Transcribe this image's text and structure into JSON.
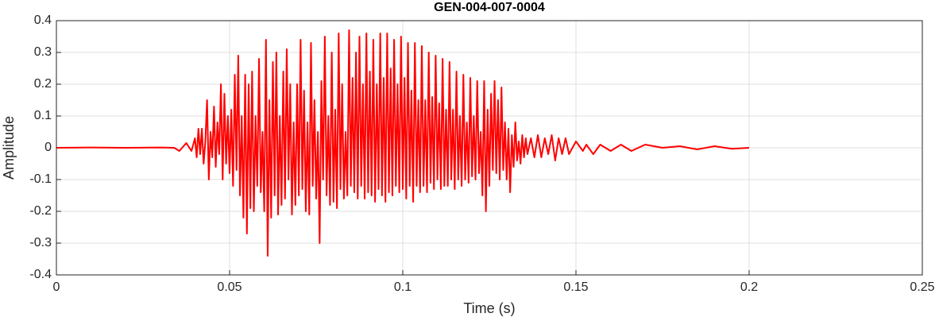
{
  "chart_data": {
    "type": "line",
    "title": "GEN-004-007-0004",
    "xlabel": "Time (s)",
    "ylabel": "Amplitude",
    "color": "#ff0000",
    "grid": true,
    "xlim": [
      0,
      0.25
    ],
    "xticks": [
      0,
      0.05,
      0.1,
      0.15,
      0.2,
      0.25
    ],
    "ylim": [
      -0.4,
      0.4
    ],
    "yticks": [
      -0.4,
      -0.3,
      -0.2,
      -0.1,
      0,
      0.1,
      0.2,
      0.3,
      0.4
    ],
    "x": [
      0,
      0.01,
      0.02,
      0.03,
      0.034,
      0.0355,
      0.0375,
      0.039,
      0.04,
      0.0405,
      0.041,
      0.0415,
      0.042,
      0.0425,
      0.043,
      0.0435,
      0.044,
      0.0445,
      0.045,
      0.0455,
      0.046,
      0.0465,
      0.047,
      0.0475,
      0.048,
      0.0485,
      0.049,
      0.0495,
      0.05,
      0.0505,
      0.051,
      0.0515,
      0.052,
      0.0525,
      0.053,
      0.0535,
      0.054,
      0.0545,
      0.055,
      0.0555,
      0.056,
      0.0565,
      0.057,
      0.0575,
      0.058,
      0.0585,
      0.059,
      0.0595,
      0.06,
      0.0605,
      0.061,
      0.0615,
      0.062,
      0.0625,
      0.063,
      0.0635,
      0.064,
      0.0645,
      0.065,
      0.0655,
      0.066,
      0.0665,
      0.067,
      0.0675,
      0.068,
      0.0685,
      0.069,
      0.0695,
      0.07,
      0.0705,
      0.071,
      0.0715,
      0.072,
      0.0725,
      0.073,
      0.0735,
      0.074,
      0.0745,
      0.075,
      0.0755,
      0.076,
      0.0765,
      0.077,
      0.0775,
      0.078,
      0.0785,
      0.079,
      0.0795,
      0.08,
      0.0805,
      0.081,
      0.0815,
      0.082,
      0.0825,
      0.083,
      0.0835,
      0.084,
      0.0845,
      0.085,
      0.0855,
      0.086,
      0.0865,
      0.087,
      0.0875,
      0.088,
      0.0885,
      0.089,
      0.0895,
      0.09,
      0.0905,
      0.091,
      0.0915,
      0.092,
      0.0925,
      0.093,
      0.0935,
      0.094,
      0.0945,
      0.095,
      0.0955,
      0.096,
      0.0965,
      0.097,
      0.0975,
      0.098,
      0.0985,
      0.099,
      0.0995,
      0.1,
      0.1005,
      0.101,
      0.1015,
      0.102,
      0.1025,
      0.103,
      0.1035,
      0.104,
      0.1045,
      0.105,
      0.1055,
      0.106,
      0.1065,
      0.107,
      0.1075,
      0.108,
      0.1085,
      0.109,
      0.1095,
      0.11,
      0.1105,
      0.111,
      0.1115,
      0.112,
      0.1125,
      0.113,
      0.1135,
      0.114,
      0.1145,
      0.115,
      0.1155,
      0.116,
      0.1165,
      0.117,
      0.1175,
      0.118,
      0.1185,
      0.119,
      0.1195,
      0.12,
      0.1205,
      0.121,
      0.1215,
      0.122,
      0.1225,
      0.123,
      0.1235,
      0.124,
      0.1245,
      0.125,
      0.1255,
      0.126,
      0.1265,
      0.127,
      0.1275,
      0.128,
      0.1285,
      0.129,
      0.1295,
      0.13,
      0.1305,
      0.131,
      0.1315,
      0.132,
      0.1325,
      0.133,
      0.1335,
      0.134,
      0.1345,
      0.135,
      0.1355,
      0.136,
      0.137,
      0.138,
      0.139,
      0.14,
      0.141,
      0.142,
      0.143,
      0.144,
      0.145,
      0.146,
      0.147,
      0.148,
      0.15,
      0.152,
      0.153,
      0.155,
      0.157,
      0.16,
      0.163,
      0.166,
      0.17,
      0.175,
      0.18,
      0.185,
      0.19,
      0.195,
      0.2
    ],
    "values": [
      0,
      0.001,
      0,
      0.001,
      0,
      -0.01,
      0.015,
      -0.01,
      0.03,
      -0.03,
      0.06,
      -0.02,
      0.06,
      -0.05,
      0.02,
      0.15,
      -0.1,
      0.05,
      -0.03,
      0.13,
      -0.06,
      0.08,
      -0.02,
      0.2,
      -0.1,
      0.17,
      -0.05,
      0.1,
      -0.08,
      0.12,
      -0.12,
      0.23,
      -0.07,
      0.29,
      -0.15,
      0.1,
      -0.22,
      0.23,
      -0.27,
      0.2,
      -0.19,
      0.24,
      -0.2,
      0.1,
      -0.12,
      0.28,
      -0.14,
      0.05,
      -0.2,
      0.34,
      -0.34,
      0.15,
      -0.22,
      0.27,
      -0.15,
      0.3,
      -0.21,
      0.1,
      -0.18,
      0.24,
      -0.16,
      0.31,
      -0.1,
      0.2,
      -0.21,
      0.08,
      -0.18,
      0.2,
      -0.15,
      0.34,
      -0.13,
      0.18,
      -0.2,
      0.08,
      -0.21,
      0.33,
      -0.12,
      0.15,
      -0.16,
      0.05,
      -0.3,
      0.21,
      -0.1,
      0.35,
      -0.15,
      0.1,
      -0.18,
      0.3,
      -0.17,
      0.12,
      -0.19,
      0.36,
      -0.13,
      0.2,
      -0.16,
      0.05,
      -0.15,
      0.37,
      -0.12,
      0.22,
      -0.14,
      0.3,
      -0.16,
      0.35,
      -0.12,
      0.2,
      -0.16,
      0.36,
      -0.14,
      0.24,
      -0.15,
      0.34,
      -0.17,
      0.2,
      -0.13,
      0.36,
      -0.15,
      0.22,
      -0.17,
      0.36,
      -0.14,
      0.25,
      -0.15,
      0.34,
      -0.12,
      0.2,
      -0.14,
      0.35,
      -0.13,
      0.22,
      -0.16,
      0.33,
      -0.12,
      0.18,
      -0.17,
      0.33,
      -0.12,
      0.15,
      -0.14,
      0.32,
      -0.12,
      0.15,
      -0.14,
      0.3,
      -0.11,
      0.16,
      -0.13,
      0.29,
      -0.1,
      0.14,
      -0.13,
      0.28,
      -0.12,
      0.12,
      -0.12,
      0.27,
      -0.1,
      0.12,
      -0.13,
      0.24,
      -0.1,
      0.1,
      -0.12,
      0.23,
      -0.1,
      0.08,
      -0.11,
      0.22,
      -0.09,
      0.1,
      -0.1,
      0.21,
      -0.08,
      0.05,
      -0.15,
      0.21,
      -0.2,
      0.12,
      -0.12,
      0.17,
      -0.07,
      0.21,
      -0.08,
      0.15,
      -0.1,
      0.19,
      -0.07,
      0.08,
      -0.1,
      0.06,
      -0.14,
      0.04,
      -0.06,
      0.08,
      -0.04,
      0.02,
      -0.05,
      0.04,
      -0.03,
      0.03,
      -0.02,
      0.03,
      -0.03,
      0.04,
      -0.03,
      0.03,
      -0.02,
      0.04,
      -0.04,
      0.03,
      -0.02,
      0.03,
      -0.02,
      0.02,
      -0.01,
      0.01,
      -0.02,
      0.01,
      -0.01,
      0.01,
      -0.01,
      0.01,
      0,
      0.005,
      -0.005,
      0.005,
      -0.003,
      0
    ]
  }
}
